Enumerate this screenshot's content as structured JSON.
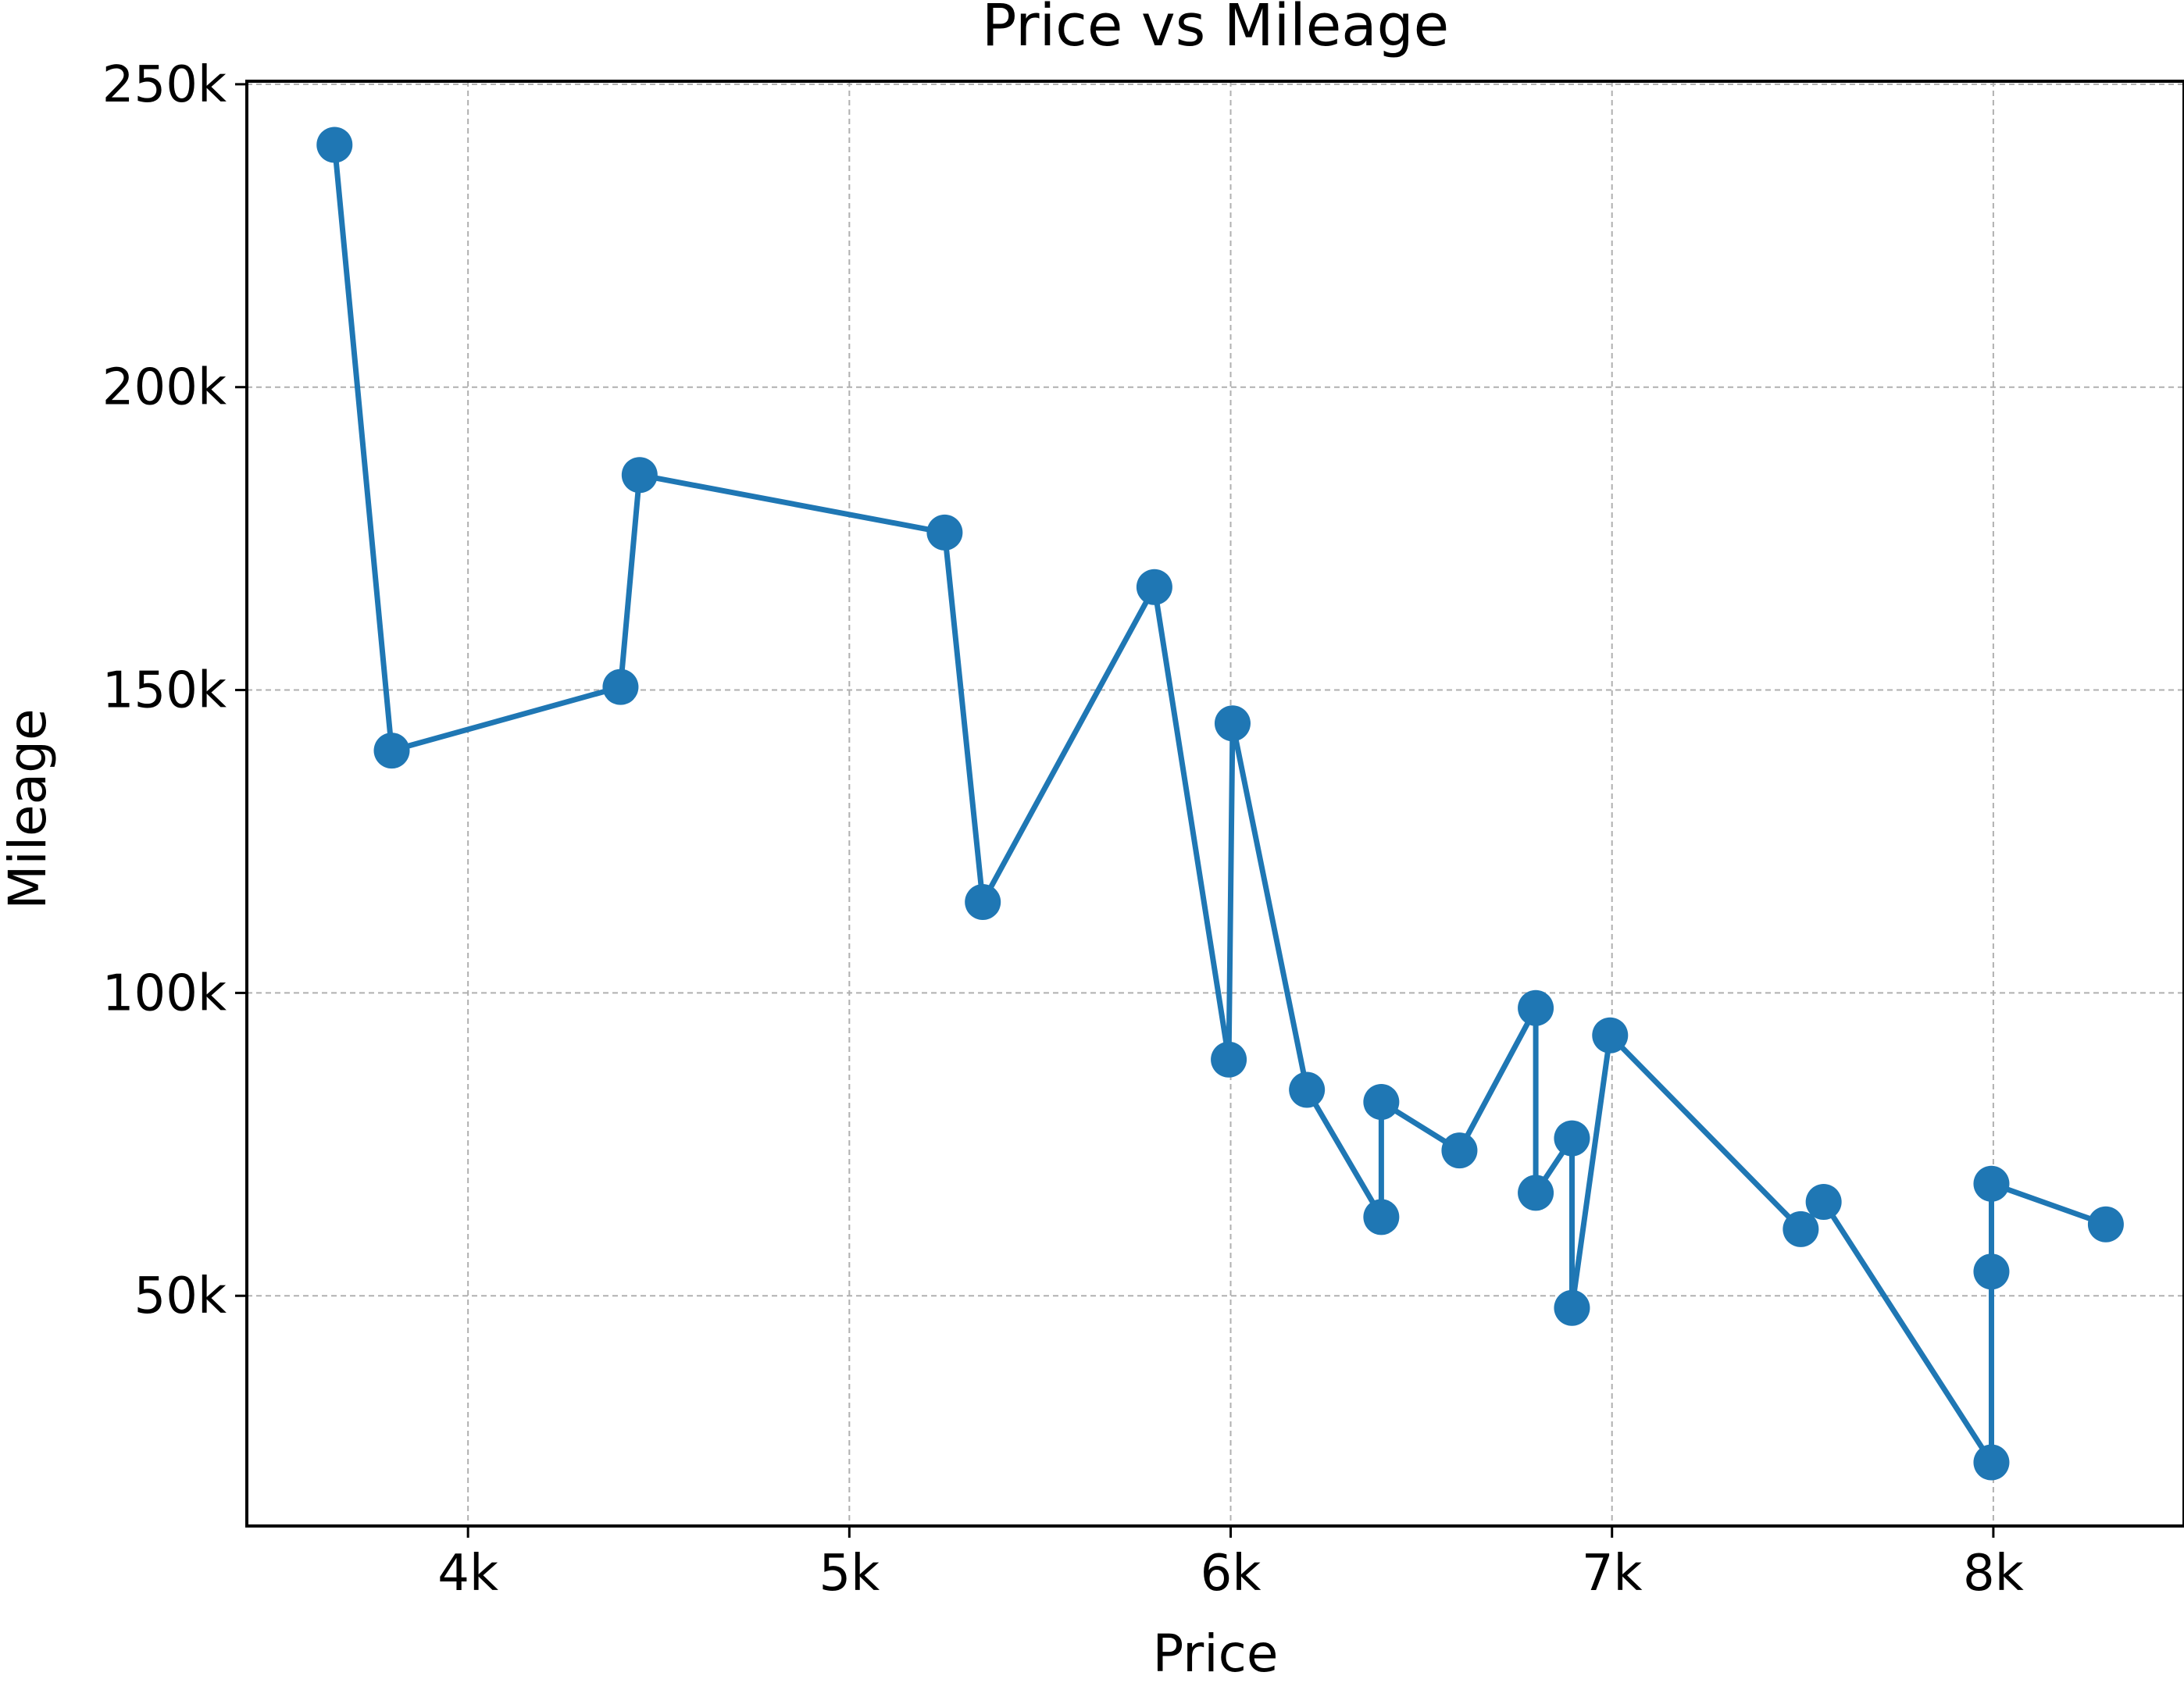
{
  "chart_data": {
    "type": "line",
    "title": "Price vs Mileage",
    "xlabel": "Price",
    "ylabel": "Mileage",
    "xlim": [
      3420,
      8500
    ],
    "ylim": [
      12000,
      250500
    ],
    "xticks": [
      4000,
      5000,
      6000,
      7000,
      8000
    ],
    "xtick_labels": [
      "4k",
      "5k",
      "6k",
      "7k",
      "8k"
    ],
    "yticks": [
      50000,
      100000,
      150000,
      200000,
      250000
    ],
    "ytick_labels": [
      "50k",
      "100k",
      "150k",
      "200k",
      "250k"
    ],
    "grid": true,
    "marker": "circle",
    "series": [
      {
        "color": "#1f77b4",
        "points": [
          {
            "x": 3650,
            "y": 240000
          },
          {
            "x": 3800,
            "y": 140000
          },
          {
            "x": 4400,
            "y": 150500
          },
          {
            "x": 4450,
            "y": 185500
          },
          {
            "x": 5250,
            "y": 176000
          },
          {
            "x": 5350,
            "y": 115000
          },
          {
            "x": 5800,
            "y": 167000
          },
          {
            "x": 5995,
            "y": 89000
          },
          {
            "x": 6005,
            "y": 144500
          },
          {
            "x": 6200,
            "y": 84000
          },
          {
            "x": 6395,
            "y": 63000
          },
          {
            "x": 6395,
            "y": 82000
          },
          {
            "x": 6600,
            "y": 74000
          },
          {
            "x": 6800,
            "y": 97500
          },
          {
            "x": 6800,
            "y": 67000
          },
          {
            "x": 6895,
            "y": 76000
          },
          {
            "x": 6895,
            "y": 48000
          },
          {
            "x": 6995,
            "y": 93000
          },
          {
            "x": 7495,
            "y": 61000
          },
          {
            "x": 7555,
            "y": 65500
          },
          {
            "x": 7995,
            "y": 22500
          },
          {
            "x": 7995,
            "y": 54000
          },
          {
            "x": 7995,
            "y": 68500
          },
          {
            "x": 8295,
            "y": 61800
          }
        ]
      }
    ]
  }
}
